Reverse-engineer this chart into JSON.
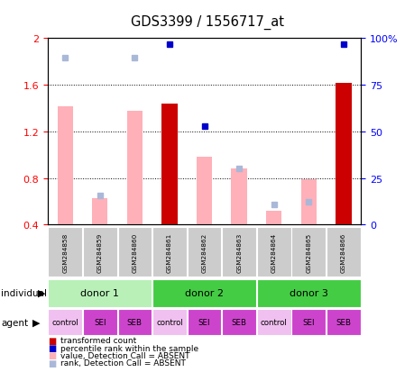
{
  "title": "GDS3399 / 1556717_at",
  "samples": [
    "GSM284858",
    "GSM284859",
    "GSM284860",
    "GSM284861",
    "GSM284862",
    "GSM284863",
    "GSM284864",
    "GSM284865",
    "GSM284866"
  ],
  "bar_values": [
    1.42,
    0.63,
    1.38,
    1.44,
    0.98,
    0.88,
    0.52,
    0.79,
    1.62
  ],
  "bar_is_darkred": [
    false,
    false,
    false,
    true,
    false,
    false,
    false,
    false,
    true
  ],
  "rank_values": [
    1.83,
    0.65,
    1.83,
    1.95,
    1.25,
    0.88,
    0.57,
    0.6,
    1.95
  ],
  "rank_is_darkblue": [
    false,
    false,
    false,
    true,
    true,
    false,
    false,
    false,
    true
  ],
  "ylim": [
    0.4,
    2.0
  ],
  "ylim_right": [
    0,
    100
  ],
  "yticks_left": [
    0.4,
    0.8,
    1.2,
    1.6,
    2.0
  ],
  "yticks_right": [
    0,
    25,
    50,
    75,
    100
  ],
  "ytick_labels_left": [
    "0.4",
    "0.8",
    "1.2",
    "1.6",
    "2"
  ],
  "ytick_labels_right": [
    "0",
    "25",
    "50",
    "75",
    "100%"
  ],
  "hlines": [
    0.8,
    1.2,
    1.6
  ],
  "donors": [
    {
      "label": "donor 1",
      "start": 0,
      "end": 3,
      "color": "#b8f0b8"
    },
    {
      "label": "donor 2",
      "start": 3,
      "end": 6,
      "color": "#44cc44"
    },
    {
      "label": "donor 3",
      "start": 6,
      "end": 9,
      "color": "#44cc44"
    }
  ],
  "agents": [
    "control",
    "SEI",
    "SEB",
    "control",
    "SEI",
    "SEB",
    "control",
    "SEI",
    "SEB"
  ],
  "agent_colors": [
    "#f0c0f0",
    "#cc44cc",
    "#cc44cc",
    "#f0c0f0",
    "#cc44cc",
    "#cc44cc",
    "#f0c0f0",
    "#cc44cc",
    "#cc44cc"
  ],
  "sample_box_color": "#cccccc",
  "bar_pink": "#ffb0b8",
  "bar_darkred": "#cc0000",
  "rank_lightblue": "#aab8d8",
  "rank_darkblue": "#0000cc",
  "legend_items": [
    {
      "color": "#cc0000",
      "label": "transformed count"
    },
    {
      "color": "#0000cc",
      "label": "percentile rank within the sample"
    },
    {
      "color": "#ffb0b8",
      "label": "value, Detection Call = ABSENT"
    },
    {
      "color": "#aab8d8",
      "label": "rank, Detection Call = ABSENT"
    }
  ]
}
